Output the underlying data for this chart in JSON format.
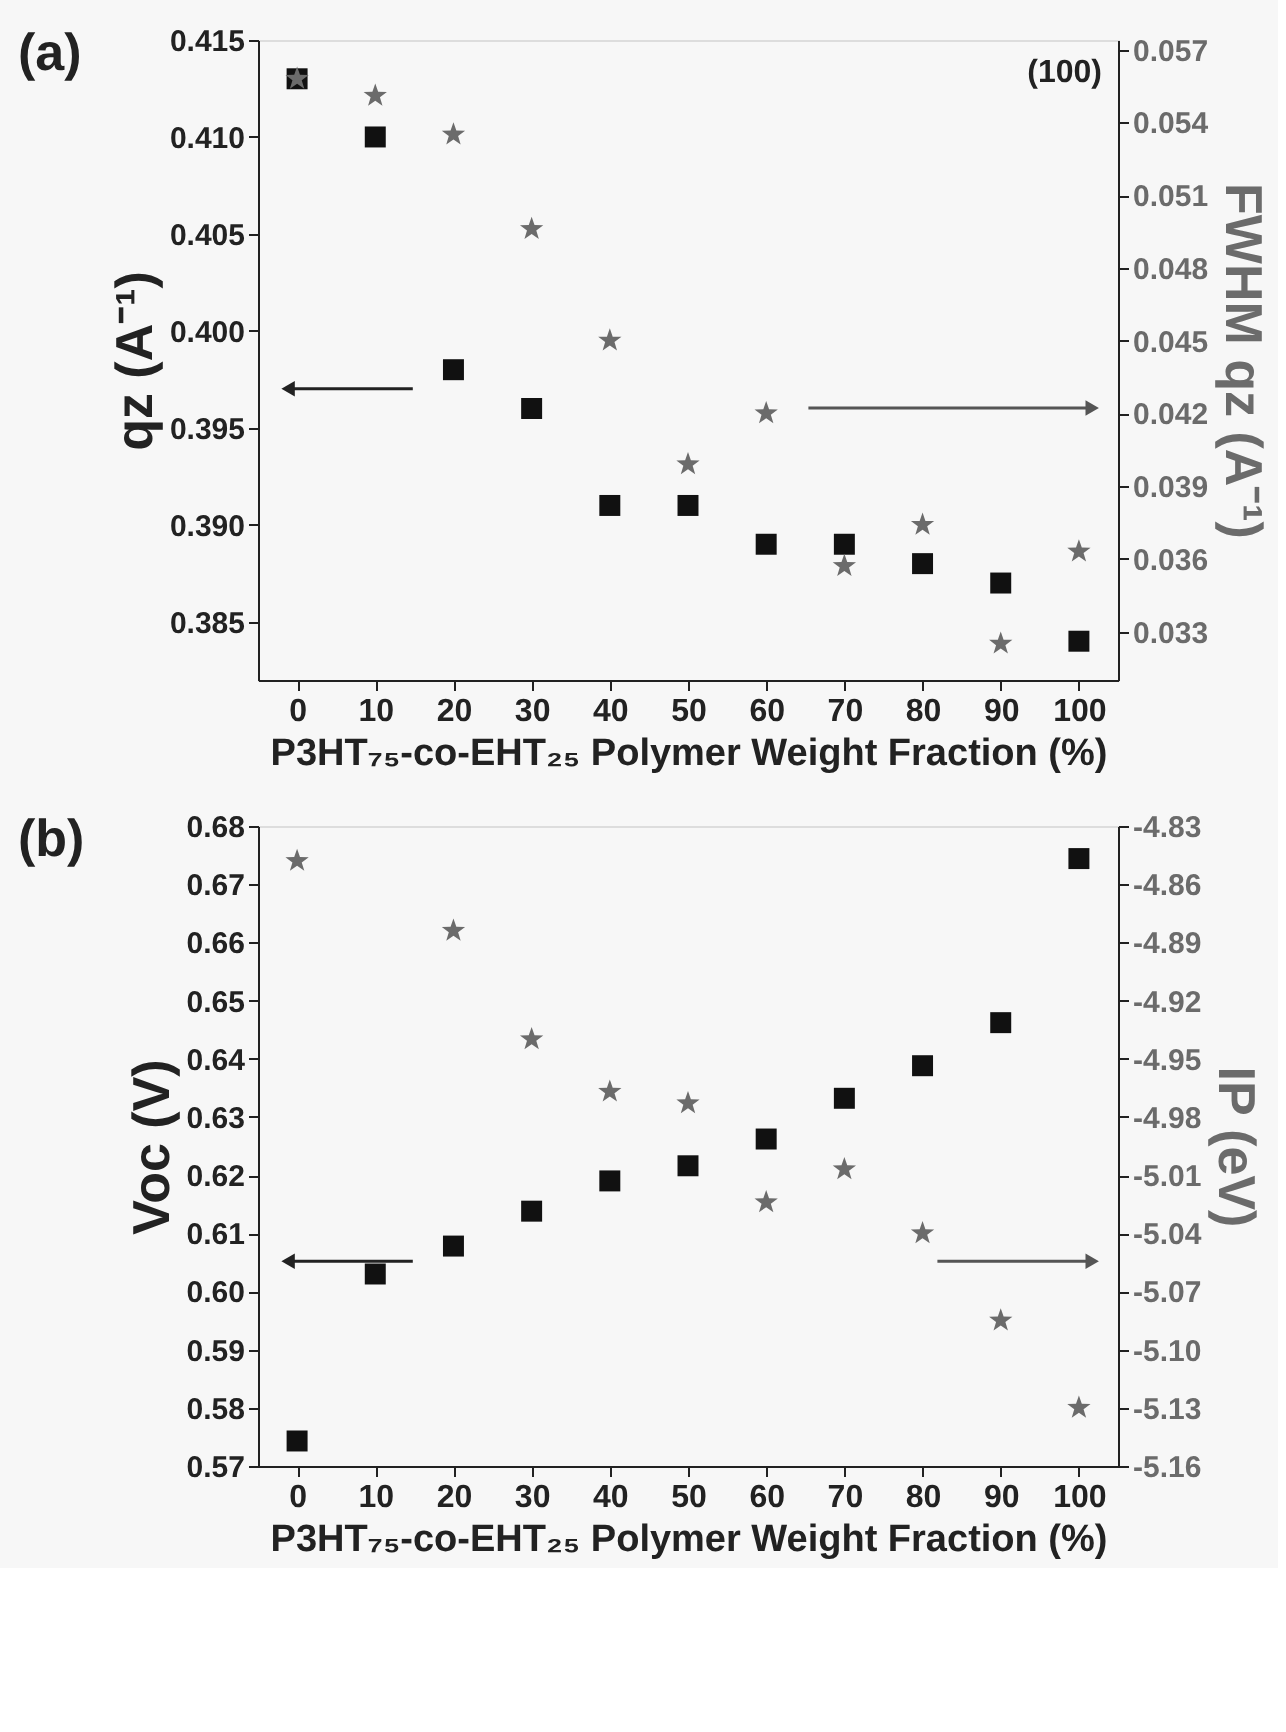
{
  "chart_data": [
    {
      "type": "scatter",
      "xlabel": "P3HT₇₅-co-EHT₂₅ Polymer Weight Fraction (%)",
      "ylabel": "qz (A⁻¹)",
      "y2label": "FWHM qz (A⁻¹)",
      "annotations": [
        "(a)",
        "(100)"
      ],
      "x": [
        0,
        10,
        20,
        30,
        40,
        50,
        60,
        70,
        80,
        90,
        100
      ],
      "series": [
        {
          "color": "#111111",
          "marker": "square",
          "values": [
            0.413,
            0.41,
            0.398,
            0.396,
            0.391,
            0.391,
            0.389,
            0.389,
            0.388,
            0.387,
            0.384
          ]
        },
        {
          "color": "#6b6b6b",
          "marker": "star",
          "axis": "y2",
          "values": [
            0.0558,
            0.0551,
            0.0535,
            0.0496,
            0.045,
            0.0399,
            0.042,
            0.0357,
            0.0374,
            0.0325,
            0.0363
          ]
        }
      ],
      "xlim": [
        -5,
        105
      ],
      "xticks": [
        0,
        10,
        20,
        30,
        40,
        50,
        60,
        70,
        80,
        90,
        100
      ],
      "ylim": [
        0.382,
        0.415
      ],
      "yticks": [
        {
          "value": 0.385,
          "label": "0.385"
        },
        {
          "value": 0.39,
          "label": "0.390"
        },
        {
          "value": 0.395,
          "label": "0.395"
        },
        {
          "value": 0.4,
          "label": "0.400"
        },
        {
          "value": 0.405,
          "label": "0.405"
        },
        {
          "value": 0.41,
          "label": "0.410"
        },
        {
          "value": 0.415,
          "label": "0.415"
        }
      ],
      "y2lim": [
        0.031,
        0.0574
      ],
      "y2ticks": [
        0.033,
        0.036,
        0.039,
        0.042,
        0.045,
        0.048,
        0.051,
        0.054,
        0.057
      ],
      "grid": false
    },
    {
      "type": "scatter",
      "xlabel": "P3HT₇₅-co-EHT₂₅ Polymer Weight Fraction (%)",
      "ylabel": "Voc (V)",
      "y2label": "IP (eV)",
      "annotations": [
        "(b)"
      ],
      "x": [
        0,
        10,
        20,
        30,
        40,
        50,
        60,
        70,
        80,
        90,
        100
      ],
      "series": [
        {
          "color": "#111111",
          "marker": "square",
          "values": [
            0.5743,
            0.603,
            0.6078,
            0.6138,
            0.619,
            0.6216,
            0.6262,
            0.6332,
            0.6388,
            0.6462,
            0.6744
          ]
        },
        {
          "color": "#6b6b6b",
          "marker": "star",
          "axis": "y2",
          "x": [
            0,
            20,
            30,
            40,
            50,
            60,
            70,
            80,
            90,
            100
          ],
          "values": [
            -4.848,
            -4.884,
            -4.94,
            -4.967,
            -4.973,
            -5.024,
            -5.007,
            -5.04,
            -5.085,
            -5.13
          ]
        }
      ],
      "xlim": [
        -5,
        105
      ],
      "xticks": [
        0,
        10,
        20,
        30,
        40,
        50,
        60,
        70,
        80,
        90,
        100
      ],
      "ylim": [
        0.57,
        0.68
      ],
      "yticks": [
        0.57,
        0.58,
        0.59,
        {
          "value": 0.6,
          "label": "0.60"
        },
        0.61,
        0.62,
        0.63,
        0.64,
        0.65,
        0.66,
        0.67,
        0.68
      ],
      "y2lim": [
        -5.16,
        -4.83
      ],
      "y2ticks": [
        -5.16,
        -5.13,
        {
          "value": -5.1,
          "label": "-5.10"
        },
        -5.07,
        -5.04,
        -5.01,
        -4.98,
        -4.95,
        -4.92,
        -4.89,
        -4.86,
        -4.83
      ],
      "grid": false
    }
  ]
}
